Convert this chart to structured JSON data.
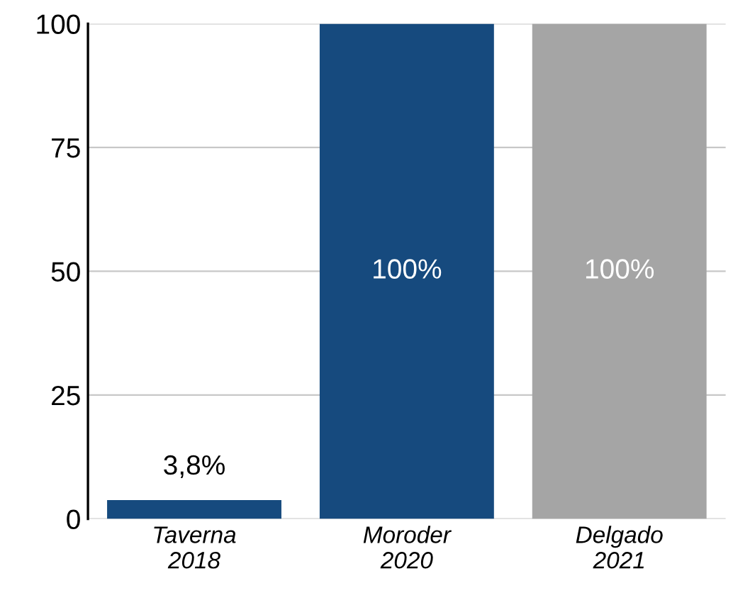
{
  "chart_data": {
    "type": "bar",
    "categories": [
      "Taverna\n2018",
      "Moroder\n2020",
      "Delgado\n2021"
    ],
    "values": [
      3.8,
      100,
      100
    ],
    "colors": [
      "#164a7e",
      "#164a7e",
      "#a5a5a5"
    ],
    "value_labels": [
      "3,8%",
      "100%",
      "100%"
    ],
    "ylim": [
      0,
      100
    ],
    "yticks": [
      0,
      25,
      50,
      75,
      100
    ],
    "grid": "y",
    "legend": false
  }
}
